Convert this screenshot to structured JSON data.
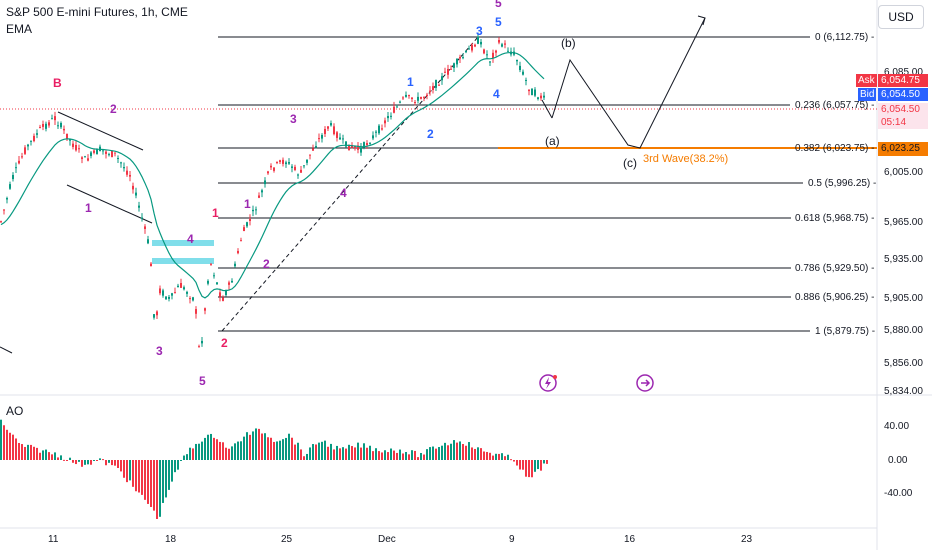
{
  "header": {
    "title": "S&P 500 E-mini Futures, 1h, CME",
    "indicator": "EMA",
    "currency": "USD"
  },
  "price_axis": {
    "ticks": [
      "6,085.00",
      "6,005.00",
      "5,965.00",
      "5,935.00",
      "5,905.00",
      "5,880.00",
      "5,856.00",
      "5,834.00"
    ],
    "ask_label": "Ask",
    "ask_value": "6,054.75",
    "bid_label": "Bid",
    "bid_value": "6,054.50",
    "last_value": "6,054.50",
    "countdown": "05:14",
    "orange_value": "6,023.25"
  },
  "ao_panel": {
    "label": "AO",
    "ticks": [
      "40.00",
      "0.00",
      "-40.00"
    ]
  },
  "time_axis": {
    "ticks": [
      "11",
      "18",
      "25",
      "Dec",
      "9",
      "16",
      "23"
    ]
  },
  "fibonacci": {
    "levels": [
      {
        "ratio": "0",
        "price": "6,112.75",
        "text": "0 (6,112.75) -"
      },
      {
        "ratio": "0.236",
        "price": "6,057.75",
        "text": "0.236 (6,057.75) -"
      },
      {
        "ratio": "0.382",
        "price": "6,023.75",
        "text": "0.382 (6,023.75) -"
      },
      {
        "ratio": "0.5",
        "price": "5,996.25",
        "text": "0.5 (5,996.25) -"
      },
      {
        "ratio": "0.618",
        "price": "5,968.75",
        "text": "0.618 (5,968.75) -"
      },
      {
        "ratio": "0.786",
        "price": "5,929.50",
        "text": "0.786 (5,929.50) -"
      },
      {
        "ratio": "0.886",
        "price": "5,906.25",
        "text": "0.886 (5,906.25) -"
      },
      {
        "ratio": "1",
        "price": "5,879.75",
        "text": "1 (5,879.75) -"
      }
    ],
    "orange_note": "3rd Wave(38.2%)"
  },
  "wave_labels": [
    {
      "text": "B",
      "color": "#e91e63"
    },
    {
      "text": "2",
      "color": "#9c27b0"
    },
    {
      "text": "1",
      "color": "#9c27b0"
    },
    {
      "text": "3",
      "color": "#9c27b0"
    },
    {
      "text": "4",
      "color": "#9c27b0"
    },
    {
      "text": "1",
      "color": "#e91e63"
    },
    {
      "text": "2",
      "color": "#e91e63"
    },
    {
      "text": "5",
      "color": "#9c27b0"
    },
    {
      "text": "1",
      "color": "#9c27b0"
    },
    {
      "text": "2",
      "color": "#9c27b0"
    },
    {
      "text": "3",
      "color": "#9c27b0"
    },
    {
      "text": "4",
      "color": "#9c27b0"
    },
    {
      "text": "1",
      "color": "#2962ff"
    },
    {
      "text": "2",
      "color": "#2962ff"
    },
    {
      "text": "3",
      "color": "#2962ff"
    },
    {
      "text": "4",
      "color": "#2962ff"
    },
    {
      "text": "5",
      "color": "#2962ff"
    },
    {
      "text": "5",
      "color": "#9c27b0"
    }
  ],
  "projection_labels": [
    "(b)",
    "(a)",
    "(c)"
  ],
  "colors": {
    "up": "#089981",
    "down": "#f23645",
    "ema": "#089981",
    "orange": "#f57c00",
    "purple": "#9c27b0",
    "blue": "#2962ff",
    "pink": "#e91e63",
    "box": "#80deea"
  }
}
